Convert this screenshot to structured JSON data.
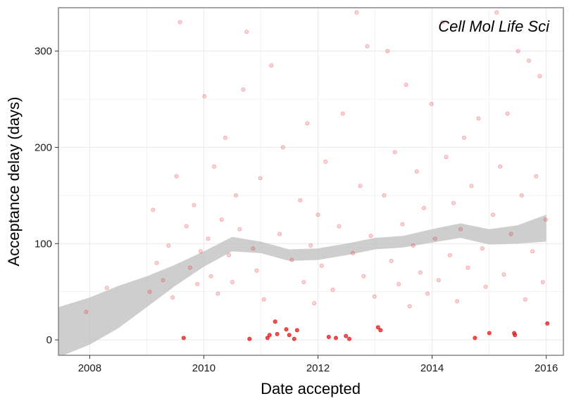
{
  "chart_data": {
    "type": "scatter",
    "xlabel": "Date accepted",
    "ylabel": "Acceptance delay (days)",
    "annotation": "Cell Mol Life Sci",
    "x_ticks": [
      "2008",
      "2010",
      "2012",
      "2014",
      "2016"
    ],
    "y_ticks": [
      "0",
      "100",
      "200",
      "300"
    ],
    "xlim": [
      "2007-06-15",
      "2016-04-20"
    ],
    "ylim": [
      -16,
      345
    ],
    "grid": true,
    "legend": "none",
    "colors": {
      "points": "#e41a1c",
      "smooth_band": "#bdbdbd",
      "grid": "#ebebeb",
      "border": "#7f7f7f"
    },
    "smooth_trend": [
      {
        "date": "2007-06-15",
        "fit": 8,
        "lower": -18,
        "upper": 34
      },
      {
        "date": "2008-01-01",
        "fit": 20,
        "lower": -5,
        "upper": 44
      },
      {
        "date": "2008-07-01",
        "fit": 34,
        "lower": 12,
        "upper": 56
      },
      {
        "date": "2009-01-01",
        "fit": 50,
        "lower": 34,
        "upper": 66
      },
      {
        "date": "2009-07-01",
        "fit": 67,
        "lower": 56,
        "upper": 78
      },
      {
        "date": "2010-01-01",
        "fit": 84,
        "lower": 76,
        "upper": 92
      },
      {
        "date": "2010-07-01",
        "fit": 99,
        "lower": 92,
        "upper": 107
      },
      {
        "date": "2011-01-01",
        "fit": 96,
        "lower": 90,
        "upper": 102
      },
      {
        "date": "2011-07-01",
        "fit": 88,
        "lower": 82,
        "upper": 94
      },
      {
        "date": "2012-01-01",
        "fit": 89,
        "lower": 83,
        "upper": 95
      },
      {
        "date": "2012-07-01",
        "fit": 94,
        "lower": 88,
        "upper": 100
      },
      {
        "date": "2013-01-01",
        "fit": 100,
        "lower": 94,
        "upper": 106
      },
      {
        "date": "2013-07-01",
        "fit": 102,
        "lower": 96,
        "upper": 108
      },
      {
        "date": "2014-01-01",
        "fit": 108,
        "lower": 101,
        "upper": 115
      },
      {
        "date": "2014-07-01",
        "fit": 113,
        "lower": 106,
        "upper": 121
      },
      {
        "date": "2015-01-01",
        "fit": 107,
        "lower": 99,
        "upper": 115
      },
      {
        "date": "2015-07-01",
        "fit": 109,
        "lower": 100,
        "upper": 119
      },
      {
        "date": "2016-01-01",
        "fit": 116,
        "lower": 102,
        "upper": 130
      }
    ],
    "points": [
      {
        "date": "2007-12-10",
        "y": 29
      },
      {
        "date": "2008-04-20",
        "y": 54
      },
      {
        "date": "2009-01-20",
        "y": 50
      },
      {
        "date": "2009-02-10",
        "y": 135
      },
      {
        "date": "2009-03-05",
        "y": 80
      },
      {
        "date": "2009-04-15",
        "y": 62
      },
      {
        "date": "2009-05-20",
        "y": 98
      },
      {
        "date": "2009-06-15",
        "y": 44
      },
      {
        "date": "2009-07-10",
        "y": 170
      },
      {
        "date": "2009-08-02",
        "y": 330
      },
      {
        "date": "2009-08-25",
        "y": 2
      },
      {
        "date": "2009-09-12",
        "y": 118
      },
      {
        "date": "2009-10-05",
        "y": 75
      },
      {
        "date": "2009-10-30",
        "y": 140
      },
      {
        "date": "2009-11-20",
        "y": 58
      },
      {
        "date": "2009-12-12",
        "y": 92
      },
      {
        "date": "2010-01-05",
        "y": 253
      },
      {
        "date": "2010-01-28",
        "y": 105
      },
      {
        "date": "2010-02-15",
        "y": 66
      },
      {
        "date": "2010-03-08",
        "y": 180
      },
      {
        "date": "2010-04-01",
        "y": 48
      },
      {
        "date": "2010-04-25",
        "y": 125
      },
      {
        "date": "2010-05-18",
        "y": 210
      },
      {
        "date": "2010-06-10",
        "y": 88
      },
      {
        "date": "2010-07-02",
        "y": 60
      },
      {
        "date": "2010-07-25",
        "y": 150
      },
      {
        "date": "2010-08-18",
        "y": 115
      },
      {
        "date": "2010-09-10",
        "y": 260
      },
      {
        "date": "2010-10-01",
        "y": 320
      },
      {
        "date": "2010-10-20",
        "y": 1
      },
      {
        "date": "2010-11-12",
        "y": 95
      },
      {
        "date": "2010-12-05",
        "y": 72
      },
      {
        "date": "2010-12-28",
        "y": 168
      },
      {
        "date": "2011-01-20",
        "y": 42
      },
      {
        "date": "2011-02-12",
        "y": 2
      },
      {
        "date": "2011-02-25",
        "y": 5
      },
      {
        "date": "2011-03-08",
        "y": 285
      },
      {
        "date": "2011-04-02",
        "y": 19
      },
      {
        "date": "2011-04-15",
        "y": 6
      },
      {
        "date": "2011-05-01",
        "y": 110
      },
      {
        "date": "2011-05-22",
        "y": 200
      },
      {
        "date": "2011-06-12",
        "y": 11
      },
      {
        "date": "2011-07-01",
        "y": 5
      },
      {
        "date": "2011-07-18",
        "y": 83
      },
      {
        "date": "2011-08-02",
        "y": 1
      },
      {
        "date": "2011-08-20",
        "y": 10
      },
      {
        "date": "2011-09-10",
        "y": 145
      },
      {
        "date": "2011-10-02",
        "y": 60
      },
      {
        "date": "2011-10-25",
        "y": 225
      },
      {
        "date": "2011-11-15",
        "y": 98
      },
      {
        "date": "2011-12-08",
        "y": 38
      },
      {
        "date": "2012-01-01",
        "y": 130
      },
      {
        "date": "2012-01-25",
        "y": 77
      },
      {
        "date": "2012-02-18",
        "y": 185
      },
      {
        "date": "2012-03-10",
        "y": 3
      },
      {
        "date": "2012-04-05",
        "y": 52
      },
      {
        "date": "2012-04-25",
        "y": 2
      },
      {
        "date": "2012-05-15",
        "y": 118
      },
      {
        "date": "2012-06-08",
        "y": 235
      },
      {
        "date": "2012-06-28",
        "y": 4
      },
      {
        "date": "2012-07-20",
        "y": 1
      },
      {
        "date": "2012-08-12",
        "y": 90
      },
      {
        "date": "2012-09-05",
        "y": 340
      },
      {
        "date": "2012-09-28",
        "y": 160
      },
      {
        "date": "2012-10-20",
        "y": 66
      },
      {
        "date": "2012-11-12",
        "y": 305
      },
      {
        "date": "2012-12-05",
        "y": 108
      },
      {
        "date": "2012-12-28",
        "y": 45
      },
      {
        "date": "2013-01-20",
        "y": 13
      },
      {
        "date": "2013-02-05",
        "y": 10
      },
      {
        "date": "2013-02-28",
        "y": 150
      },
      {
        "date": "2013-03-22",
        "y": 300
      },
      {
        "date": "2013-04-15",
        "y": 82
      },
      {
        "date": "2013-05-08",
        "y": 195
      },
      {
        "date": "2013-06-01",
        "y": 58
      },
      {
        "date": "2013-06-25",
        "y": 120
      },
      {
        "date": "2013-07-18",
        "y": 265
      },
      {
        "date": "2013-08-10",
        "y": 35
      },
      {
        "date": "2013-09-02",
        "y": 98
      },
      {
        "date": "2013-09-25",
        "y": 175
      },
      {
        "date": "2013-10-18",
        "y": 70
      },
      {
        "date": "2013-11-10",
        "y": 137
      },
      {
        "date": "2013-12-03",
        "y": 48
      },
      {
        "date": "2013-12-28",
        "y": 245
      },
      {
        "date": "2014-01-20",
        "y": 105
      },
      {
        "date": "2014-02-12",
        "y": 62
      },
      {
        "date": "2014-03-08",
        "y": 330
      },
      {
        "date": "2014-04-01",
        "y": 190
      },
      {
        "date": "2014-04-25",
        "y": 88
      },
      {
        "date": "2014-05-18",
        "y": 142
      },
      {
        "date": "2014-06-10",
        "y": 40
      },
      {
        "date": "2014-07-02",
        "y": 115
      },
      {
        "date": "2014-07-25",
        "y": 210
      },
      {
        "date": "2014-08-18",
        "y": 75
      },
      {
        "date": "2014-09-10",
        "y": 160
      },
      {
        "date": "2014-10-02",
        "y": 2
      },
      {
        "date": "2014-10-25",
        "y": 230
      },
      {
        "date": "2014-11-18",
        "y": 95
      },
      {
        "date": "2014-12-10",
        "y": 55
      },
      {
        "date": "2015-01-02",
        "y": 7
      },
      {
        "date": "2015-01-25",
        "y": 130
      },
      {
        "date": "2015-02-18",
        "y": 340
      },
      {
        "date": "2015-03-12",
        "y": 180
      },
      {
        "date": "2015-04-05",
        "y": 68
      },
      {
        "date": "2015-04-28",
        "y": 235
      },
      {
        "date": "2015-05-20",
        "y": 110
      },
      {
        "date": "2015-06-10",
        "y": 7
      },
      {
        "date": "2015-06-15",
        "y": 5
      },
      {
        "date": "2015-07-05",
        "y": 300
      },
      {
        "date": "2015-07-28",
        "y": 150
      },
      {
        "date": "2015-08-20",
        "y": 42
      },
      {
        "date": "2015-09-12",
        "y": 290
      },
      {
        "date": "2015-10-05",
        "y": 92
      },
      {
        "date": "2015-10-28",
        "y": 170
      },
      {
        "date": "2015-11-20",
        "y": 274
      },
      {
        "date": "2015-12-10",
        "y": 60
      },
      {
        "date": "2015-12-28",
        "y": 125
      },
      {
        "date": "2016-01-08",
        "y": 17
      }
    ]
  }
}
